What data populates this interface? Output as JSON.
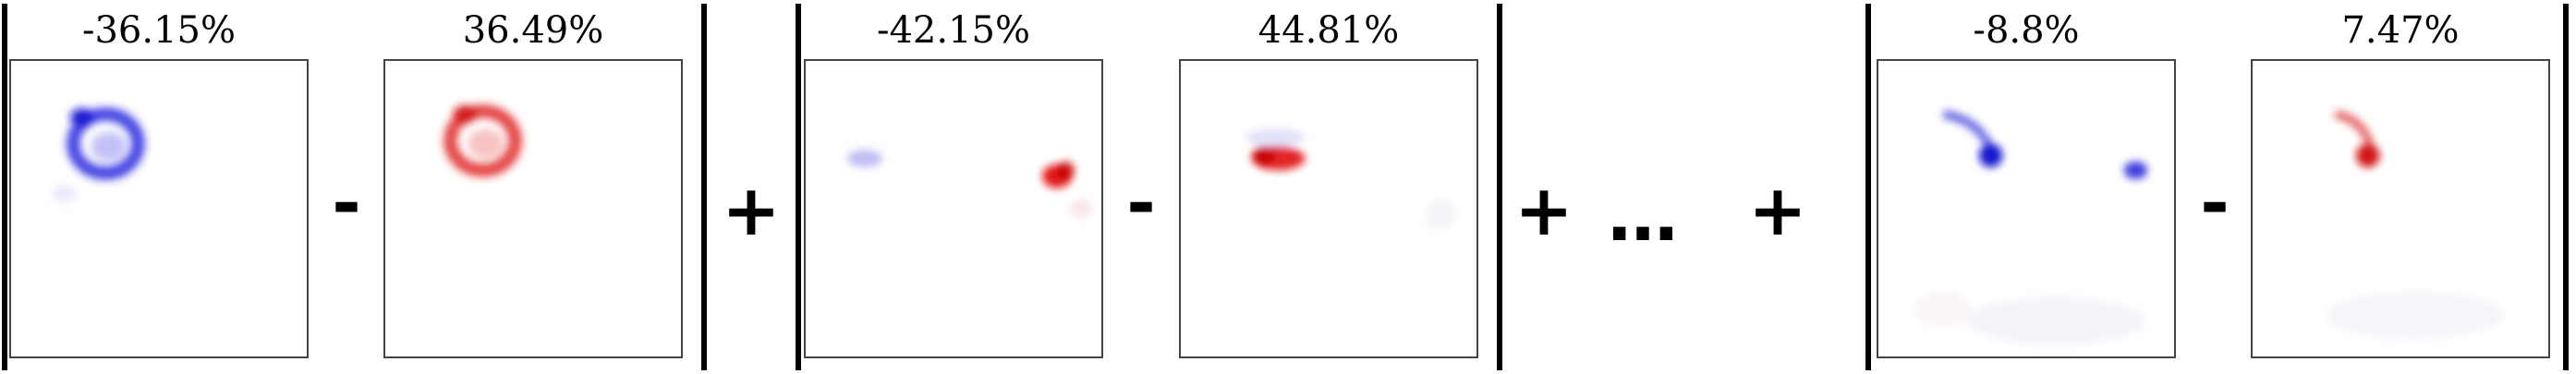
{
  "groups": [
    {
      "neg_label": "-36.15%",
      "pos_label": "36.49%"
    },
    {
      "neg_label": "-42.15%",
      "pos_label": "44.81%"
    },
    {
      "neg_label": "-8.8%",
      "pos_label": "7.47%"
    }
  ],
  "operators": {
    "minus": "-",
    "plus": "+",
    "ellipsis": "…"
  },
  "colors": {
    "negative": "#1515e6",
    "positive": "#e61515",
    "divider": "#000000"
  }
}
